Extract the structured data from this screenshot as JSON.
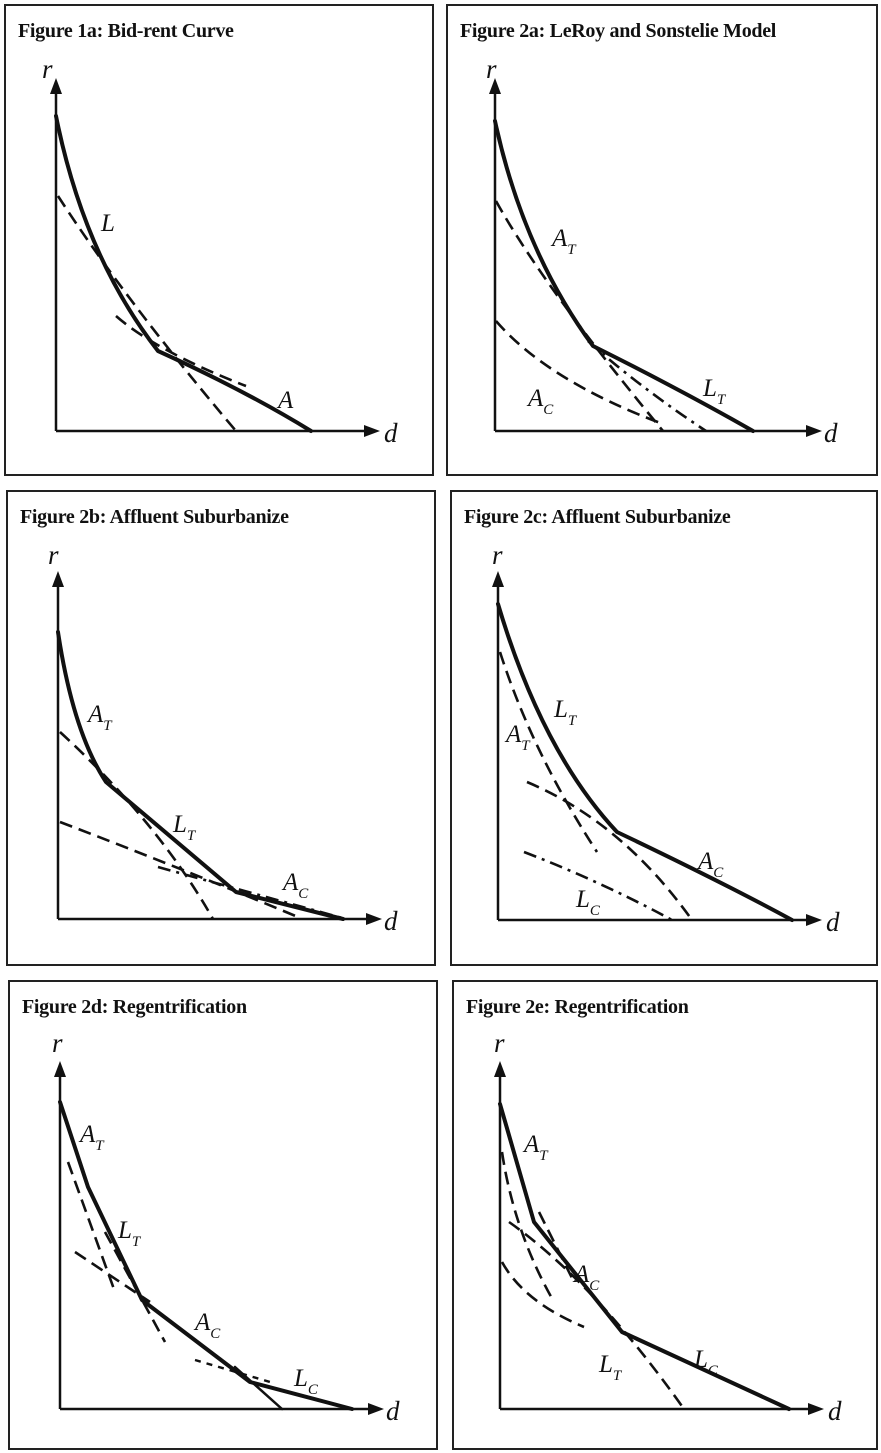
{
  "axes": {
    "y": "r",
    "x": "d"
  },
  "figures": [
    {
      "id": "fig-1a",
      "title": "Figure 1a: Bid-rent Curve",
      "labels": [
        {
          "main": "L",
          "sub": ""
        },
        {
          "main": "A",
          "sub": ""
        }
      ]
    },
    {
      "id": "fig-2a",
      "title": "Figure 2a: LeRoy and Sonstelie Model",
      "labels": [
        {
          "main": "A",
          "sub": "T"
        },
        {
          "main": "A",
          "sub": "C"
        },
        {
          "main": "L",
          "sub": "T"
        }
      ]
    },
    {
      "id": "fig-2b",
      "title": "Figure 2b: Affluent Suburbanize",
      "labels": [
        {
          "main": "A",
          "sub": "T"
        },
        {
          "main": "L",
          "sub": "T"
        },
        {
          "main": "A",
          "sub": "C"
        }
      ]
    },
    {
      "id": "fig-2c",
      "title": "Figure 2c: Affluent Suburbanize",
      "labels": [
        {
          "main": "L",
          "sub": "T"
        },
        {
          "main": "A",
          "sub": "T"
        },
        {
          "main": "A",
          "sub": "C"
        },
        {
          "main": "L",
          "sub": "C"
        }
      ]
    },
    {
      "id": "fig-2d",
      "title": "Figure 2d: Regentrification",
      "labels": [
        {
          "main": "A",
          "sub": "T"
        },
        {
          "main": "L",
          "sub": "T"
        },
        {
          "main": "A",
          "sub": "C"
        },
        {
          "main": "L",
          "sub": "C"
        }
      ]
    },
    {
      "id": "fig-2e",
      "title": "Figure 2e: Regentrification",
      "labels": [
        {
          "main": "A",
          "sub": "T"
        },
        {
          "main": "A",
          "sub": "C"
        },
        {
          "main": "L",
          "sub": "T"
        },
        {
          "main": "L",
          "sub": "C"
        }
      ]
    }
  ]
}
